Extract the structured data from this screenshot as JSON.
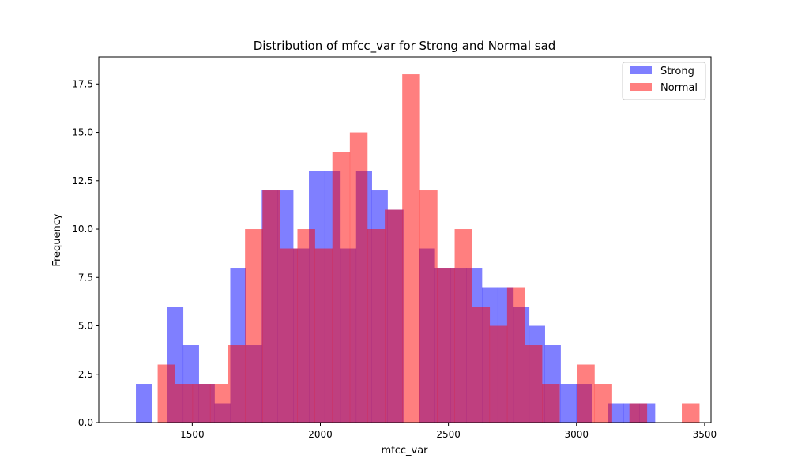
{
  "chart_data": {
    "type": "bar",
    "title": "Distribution of mfcc_var for Strong and Normal sad",
    "xlabel": "mfcc_var",
    "ylabel": "Frequency",
    "xlim": [
      1135,
      3525
    ],
    "ylim": [
      0,
      18.9
    ],
    "xticks": [
      1500,
      2000,
      2500,
      3000,
      3500
    ],
    "yticks": [
      0.0,
      2.5,
      5.0,
      7.5,
      10.0,
      12.5,
      15.0,
      17.5
    ],
    "grid": false,
    "legend_position": "top-right",
    "series": [
      {
        "name": "Strong",
        "color": "#0000ff",
        "opacity": 0.5,
        "bin_start": 1280,
        "bin_width": 61.4,
        "counts": [
          2,
          0,
          6,
          4,
          2,
          1,
          8,
          4,
          12,
          12,
          9,
          13,
          13,
          9,
          13,
          12,
          11,
          0,
          9,
          8,
          8,
          8,
          7,
          7,
          6,
          5,
          4,
          2,
          2,
          0,
          1,
          1,
          1
        ]
      },
      {
        "name": "Normal",
        "color": "#ff0000",
        "opacity": 0.5,
        "bin_start": 1365,
        "bin_width": 68.2,
        "counts": [
          3,
          2,
          2,
          2,
          4,
          10,
          12,
          9,
          10,
          9,
          14,
          15,
          10,
          11,
          18,
          12,
          8,
          10,
          6,
          5,
          7,
          4,
          2,
          0,
          3,
          2,
          0,
          1,
          0,
          0,
          1
        ]
      }
    ],
    "xtick_labels": [
      "1500",
      "2000",
      "2500",
      "3000",
      "3500"
    ],
    "ytick_labels": [
      "0.0",
      "2.5",
      "5.0",
      "7.5",
      "10.0",
      "12.5",
      "15.0",
      "17.5"
    ]
  }
}
